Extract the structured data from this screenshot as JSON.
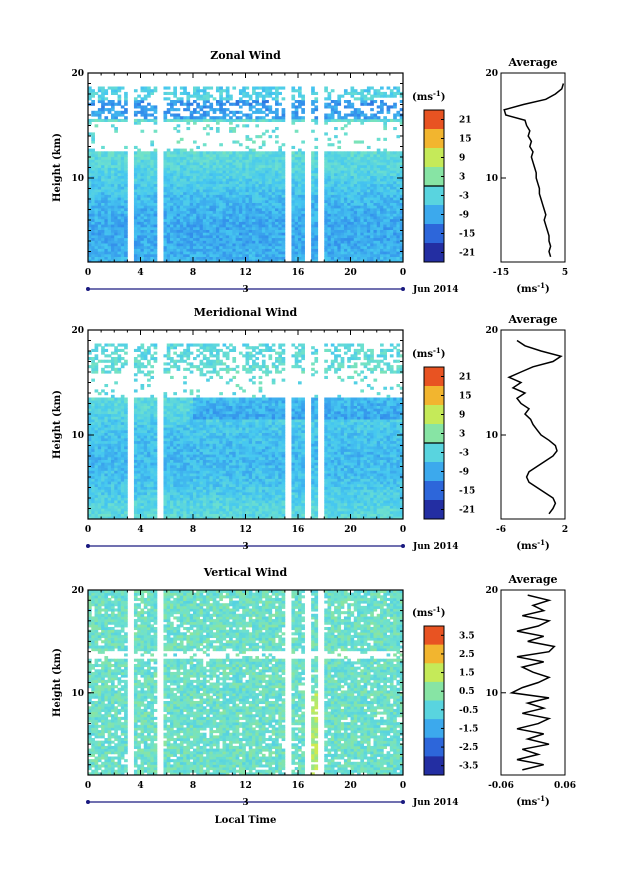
{
  "chart_data": [
    {
      "type": "heatmap",
      "title": "Zonal Wind",
      "ylabel": "Height (km)",
      "ylim": [
        2,
        20
      ],
      "y_ticks": [
        "10",
        "20"
      ],
      "xlim": [
        0,
        24
      ],
      "x_ticks": [
        "0",
        "4",
        "8",
        "12",
        "16",
        "20",
        "0"
      ],
      "date_marker": "3",
      "date_label": "Jun 2014",
      "colorbar": {
        "unit_base": "(ms",
        "unit_exp": "-1",
        "unit_close": ")",
        "ticks": [
          "21",
          "15",
          "9",
          "3",
          "-3",
          "-9",
          "-15",
          "-21"
        ],
        "range": [
          -24,
          24
        ],
        "contour": 0
      },
      "profile": {
        "title": "Average",
        "xlim": [
          -15,
          5
        ],
        "x_ticks": [
          "-15",
          "5"
        ],
        "y_ticks": [
          "10",
          "20"
        ],
        "unit_base": "(ms",
        "unit_exp": "-1",
        "unit_close": ")",
        "heights": [
          2.5,
          3,
          3.5,
          4,
          4.5,
          5,
          5.5,
          6,
          6.5,
          7,
          7.5,
          8,
          8.5,
          9,
          9.5,
          10,
          10.5,
          11,
          11.5,
          12,
          12.5,
          13,
          13.5,
          14,
          14.5,
          15,
          15.5,
          16,
          16.5,
          17,
          17.5,
          18,
          18.5,
          19
        ],
        "values": [
          0.5,
          0,
          0.5,
          0,
          0,
          -0.5,
          -1,
          -1.5,
          -1,
          -1.5,
          -2,
          -2.5,
          -3,
          -3,
          -3.5,
          -4,
          -4,
          -4.5,
          -5,
          -5.5,
          -5,
          -6,
          -5.5,
          -6.5,
          -6,
          -7,
          -7.5,
          -13.5,
          -14,
          -8,
          -1,
          2,
          4,
          4.5
        ]
      }
    },
    {
      "type": "heatmap",
      "title": "Meridional Wind",
      "ylabel": "Height (km)",
      "ylim": [
        2,
        20
      ],
      "y_ticks": [
        "10",
        "20"
      ],
      "xlim": [
        0,
        24
      ],
      "x_ticks": [
        "0",
        "4",
        "8",
        "12",
        "16",
        "20",
        "0"
      ],
      "date_marker": "3",
      "date_label": "Jun 2014",
      "colorbar": {
        "unit_base": "(ms",
        "unit_exp": "-1",
        "unit_close": ")",
        "ticks": [
          "21",
          "15",
          "9",
          "3",
          "-3",
          "-9",
          "-15",
          "-21"
        ],
        "range": [
          -24,
          24
        ],
        "contour": 0
      },
      "profile": {
        "title": "Average",
        "xlim": [
          -6,
          2
        ],
        "x_ticks": [
          "-6",
          "2"
        ],
        "y_ticks": [
          "10",
          "20"
        ],
        "unit_base": "(ms",
        "unit_exp": "-1",
        "unit_close": ")",
        "heights": [
          2.5,
          3,
          3.5,
          4,
          4.5,
          5,
          5.5,
          6,
          6.5,
          7,
          7.5,
          8,
          8.5,
          9,
          9.5,
          10,
          10.5,
          11,
          11.5,
          12,
          12.5,
          13,
          13.5,
          14,
          14.5,
          15,
          15.5,
          16,
          16.5,
          17,
          17.5,
          18,
          18.5,
          19
        ],
        "values": [
          0,
          0.5,
          0.8,
          0.5,
          -0.5,
          -1.5,
          -2.5,
          -2.8,
          -2.5,
          -1.5,
          -0.5,
          0.5,
          1,
          0.8,
          0,
          -1,
          -1.5,
          -2,
          -2.3,
          -3,
          -2.5,
          -3.5,
          -4,
          -3,
          -4.5,
          -3.5,
          -5,
          -3.5,
          -2,
          0.5,
          1.5,
          -1,
          -3,
          -4
        ]
      }
    },
    {
      "type": "heatmap",
      "title": "Vertical Wind",
      "xlabel": "Local Time",
      "ylabel": "Height (km)",
      "ylim": [
        2,
        20
      ],
      "y_ticks": [
        "10",
        "20"
      ],
      "xlim": [
        0,
        24
      ],
      "x_ticks": [
        "0",
        "4",
        "8",
        "12",
        "16",
        "20",
        "0"
      ],
      "date_marker": "3",
      "date_label": "Jun 2014",
      "colorbar": {
        "unit_base": "(ms",
        "unit_exp": "-1",
        "unit_close": ")",
        "ticks": [
          "3.5",
          "2.5",
          "1.5",
          "0.5",
          "-0.5",
          "-1.5",
          "-2.5",
          "-3.5"
        ],
        "range": [
          -4,
          4
        ]
      },
      "profile": {
        "title": "Average",
        "xlim": [
          -0.06,
          0.06
        ],
        "x_ticks": [
          "-0.06",
          "0.06"
        ],
        "y_ticks": [
          "10",
          "20"
        ],
        "unit_base": "(ms",
        "unit_exp": "-1",
        "unit_close": ")",
        "heights": [
          2.5,
          3,
          3.5,
          4,
          4.5,
          5,
          5.5,
          6,
          6.5,
          7,
          7.5,
          8,
          8.5,
          9,
          9.5,
          10,
          10.5,
          11,
          11.5,
          12,
          12.5,
          13,
          13.5,
          14,
          14.5,
          15,
          15.5,
          16,
          16.5,
          17,
          17.5,
          18,
          18.5,
          19,
          19.5
        ],
        "values": [
          -0.02,
          0.02,
          -0.03,
          0.01,
          -0.02,
          0.03,
          -0.01,
          0.02,
          -0.03,
          0.01,
          0.03,
          -0.02,
          0.02,
          -0.01,
          0.03,
          -0.04,
          -0.02,
          0.01,
          0.03,
          0,
          -0.02,
          0.02,
          -0.03,
          0.03,
          0.04,
          -0.01,
          0.02,
          -0.03,
          0.01,
          0.03,
          -0.02,
          0.02,
          0,
          0.03,
          -0.01
        ]
      }
    }
  ]
}
